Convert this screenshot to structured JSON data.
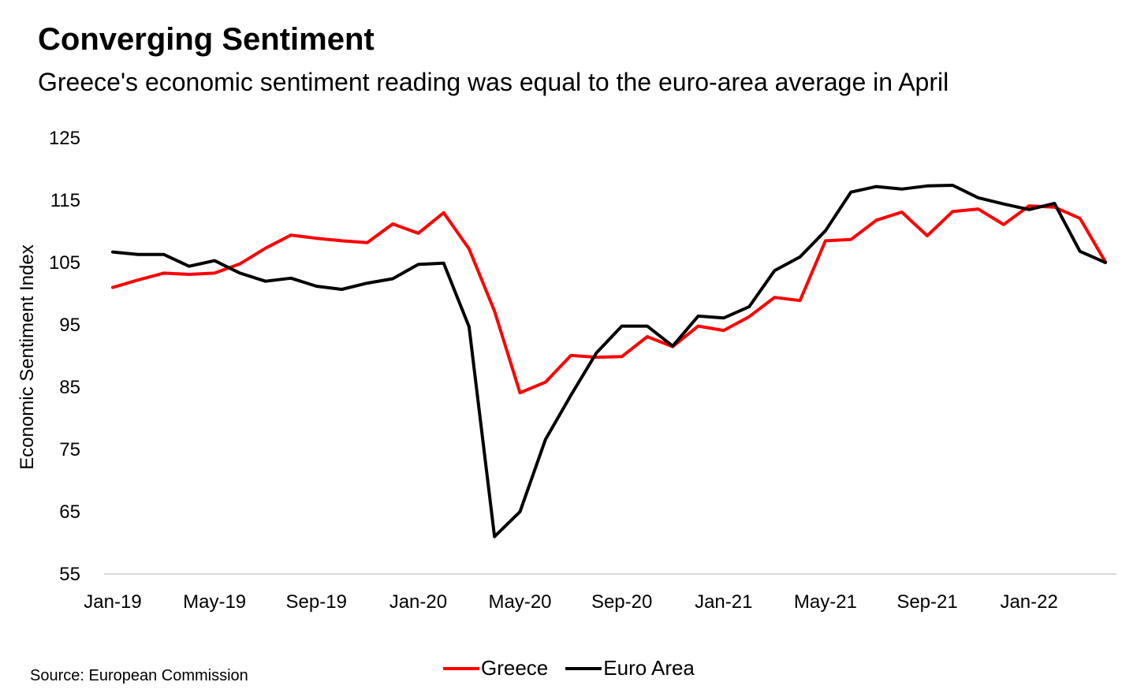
{
  "chart_data": {
    "type": "line",
    "title": "Converging Sentiment",
    "subtitle": "Greece's economic sentiment reading was equal to the euro-area average in April",
    "ylabel": "Economic Sentiment Index",
    "xlabel": "",
    "ylim": [
      55,
      125
    ],
    "yticks": [
      "125",
      "115",
      "105",
      "95",
      "85",
      "75",
      "65",
      "55"
    ],
    "x": [
      "Jan-19",
      "Feb-19",
      "Mar-19",
      "Apr-19",
      "May-19",
      "Jun-19",
      "Jul-19",
      "Aug-19",
      "Sep-19",
      "Oct-19",
      "Nov-19",
      "Dec-19",
      "Jan-20",
      "Feb-20",
      "Mar-20",
      "Apr-20",
      "May-20",
      "Jun-20",
      "Jul-20",
      "Aug-20",
      "Sep-20",
      "Oct-20",
      "Nov-20",
      "Dec-20",
      "Jan-21",
      "Feb-21",
      "Mar-21",
      "Apr-21",
      "May-21",
      "Jun-21",
      "Jul-21",
      "Aug-21",
      "Sep-21",
      "Oct-21",
      "Nov-21",
      "Dec-21",
      "Jan-22",
      "Feb-22",
      "Mar-22",
      "Apr-22"
    ],
    "xtick_labels": [
      "Jan-19",
      "May-19",
      "Sep-19",
      "Jan-20",
      "May-20",
      "Sep-20",
      "Jan-21",
      "May-21",
      "Sep-21",
      "Jan-22"
    ],
    "series": [
      {
        "name": "Greece",
        "color": "#ff0000",
        "values": [
          101.0,
          102.2,
          103.3,
          103.1,
          103.3,
          104.8,
          107.3,
          109.4,
          108.9,
          108.5,
          108.2,
          111.2,
          109.7,
          113.0,
          107.2,
          97.2,
          84.1,
          85.8,
          90.1,
          89.8,
          89.9,
          93.1,
          91.5,
          94.8,
          94.1,
          96.3,
          99.4,
          98.9,
          108.5,
          108.7,
          111.8,
          113.1,
          109.3,
          113.2,
          113.6,
          111.1,
          114.1,
          113.9,
          112.1,
          105.1
        ]
      },
      {
        "name": "Euro Area",
        "color": "#000000",
        "values": [
          106.7,
          106.3,
          106.3,
          104.4,
          105.3,
          103.3,
          102.0,
          102.5,
          101.2,
          100.7,
          101.7,
          102.4,
          104.7,
          104.9,
          94.7,
          61.0,
          65.0,
          76.6,
          83.7,
          90.5,
          94.8,
          94.8,
          91.6,
          96.4,
          96.1,
          97.9,
          103.7,
          105.9,
          110.1,
          116.3,
          117.2,
          116.8,
          117.3,
          117.4,
          115.4,
          114.4,
          113.5,
          114.5,
          106.8,
          105.0
        ]
      }
    ],
    "grid": false,
    "legend_position": "bottom-center"
  },
  "footer": {
    "source": "Source: European Commission"
  }
}
